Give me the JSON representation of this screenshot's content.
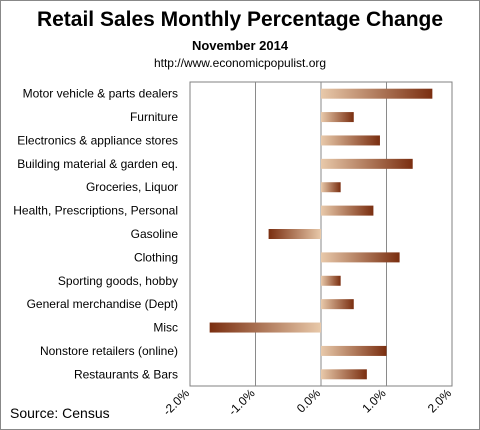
{
  "title": "Retail Sales Monthly  Percentage Change",
  "subtitle": "November 2014",
  "url": "http://www.economicpopulist.org",
  "source": "Source:  Census",
  "chart_data": {
    "type": "bar",
    "orientation": "horizontal",
    "categories": [
      "Motor vehicle & parts dealers",
      "Furniture",
      "Electronics & appliance stores",
      "Building material & garden eq.",
      "Groceries, Liquor",
      "Health, Prescriptions, Personal",
      "Gasoline",
      "Clothing",
      "Sporting goods, hobby",
      "General merchandise (Dept)",
      "Misc",
      "Nonstore retailers (online)",
      "Restaurants & Bars"
    ],
    "values": [
      1.7,
      0.5,
      0.9,
      1.4,
      0.3,
      0.8,
      -0.8,
      1.2,
      0.3,
      0.5,
      -1.7,
      1.0,
      0.7
    ],
    "xlim": [
      -2.0,
      2.0
    ],
    "ticks": [
      -2.0,
      -1.0,
      0.0,
      1.0,
      2.0
    ],
    "tick_labels": [
      "-2.0%",
      "-1.0%",
      "0.0%",
      "1.0%",
      "2.0%"
    ],
    "grid": true,
    "legend": "none",
    "bar_gradient": [
      "#e8c9aa",
      "#7a2e10"
    ]
  }
}
